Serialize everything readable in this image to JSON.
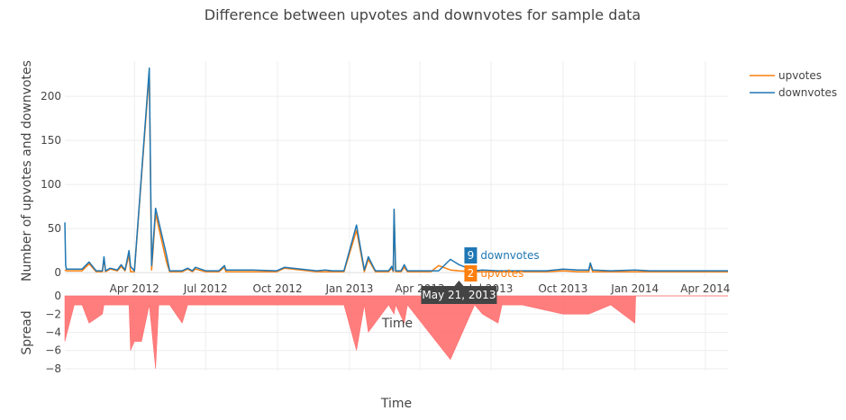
{
  "chart_data": [
    {
      "type": "line",
      "title": "Difference between upvotes and downvotes for sample data",
      "xlabel": "Time",
      "ylabel": "Number of upvotes and downvotes",
      "ylim": [
        -5,
        240
      ],
      "y_ticks": [
        0,
        50,
        100,
        150,
        200
      ],
      "x_ticks": [
        {
          "date": "2012-04-01",
          "label": "Apr 2012"
        },
        {
          "date": "2012-07-01",
          "label": "Jul 2012"
        },
        {
          "date": "2012-10-01",
          "label": "Oct 2012"
        },
        {
          "date": "2013-01-01",
          "label": "Jan 2013"
        },
        {
          "date": "2013-04-01",
          "label": "Apr 2013"
        },
        {
          "date": "2013-07-01",
          "label": "Jul 2013"
        },
        {
          "date": "2013-10-01",
          "label": "Oct 2013"
        },
        {
          "date": "2014-01-01",
          "label": "Jan 2014"
        },
        {
          "date": "2014-04-01",
          "label": "Apr 2014"
        }
      ],
      "xlim": [
        "2012-01-03",
        "2014-04-30"
      ],
      "grid": true,
      "legend": "top-right",
      "series": [
        {
          "name": "upvotes",
          "color": "#ff7f0e",
          "points": [
            [
              "2012-01-03",
              3
            ],
            [
              "2012-01-05",
              2
            ],
            [
              "2012-01-15",
              2
            ],
            [
              "2012-01-25",
              2
            ],
            [
              "2012-02-03",
              10
            ],
            [
              "2012-02-12",
              1
            ],
            [
              "2012-02-20",
              1
            ],
            [
              "2012-02-22",
              16
            ],
            [
              "2012-02-24",
              1
            ],
            [
              "2012-03-01",
              4
            ],
            [
              "2012-03-10",
              2
            ],
            [
              "2012-03-15",
              7
            ],
            [
              "2012-03-20",
              2
            ],
            [
              "2012-03-25",
              20
            ],
            [
              "2012-03-27",
              1
            ],
            [
              "2012-04-01",
              1
            ],
            [
              "2012-04-20",
              227
            ],
            [
              "2012-04-23",
              3
            ],
            [
              "2012-04-28",
              67
            ],
            [
              "2012-05-12",
              12
            ],
            [
              "2012-05-16",
              1
            ],
            [
              "2012-06-01",
              1
            ],
            [
              "2012-06-08",
              4
            ],
            [
              "2012-06-14",
              1
            ],
            [
              "2012-06-18",
              4
            ],
            [
              "2012-07-01",
              1
            ],
            [
              "2012-07-18",
              1
            ],
            [
              "2012-07-25",
              6
            ],
            [
              "2012-07-27",
              1
            ],
            [
              "2012-08-30",
              1
            ],
            [
              "2012-09-30",
              1
            ],
            [
              "2012-10-10",
              5
            ],
            [
              "2012-11-20",
              1
            ],
            [
              "2012-12-01",
              1
            ],
            [
              "2012-12-10",
              1
            ],
            [
              "2012-12-25",
              1
            ],
            [
              "2013-01-10",
              48
            ],
            [
              "2013-01-20",
              1
            ],
            [
              "2013-01-25",
              15
            ],
            [
              "2013-02-03",
              1
            ],
            [
              "2013-02-20",
              1
            ],
            [
              "2013-02-24",
              5
            ],
            [
              "2013-02-26",
              1
            ],
            [
              "2013-02-27",
              70
            ],
            [
              "2013-03-01",
              1
            ],
            [
              "2013-03-08",
              1
            ],
            [
              "2013-03-12",
              6
            ],
            [
              "2013-03-16",
              1
            ],
            [
              "2013-04-01",
              1
            ],
            [
              "2013-04-15",
              1
            ],
            [
              "2013-04-25",
              8
            ],
            [
              "2013-05-10",
              3
            ],
            [
              "2013-05-21",
              2
            ],
            [
              "2013-06-10",
              1
            ],
            [
              "2013-06-20",
              1
            ],
            [
              "2013-07-10",
              1
            ],
            [
              "2013-08-10",
              1
            ],
            [
              "2013-09-10",
              1
            ],
            [
              "2013-10-01",
              2
            ],
            [
              "2013-10-20",
              1
            ],
            [
              "2013-11-03",
              1
            ],
            [
              "2013-11-05",
              9
            ],
            [
              "2013-11-08",
              1
            ],
            [
              "2013-12-01",
              1
            ],
            [
              "2014-01-01",
              1
            ],
            [
              "2014-01-20",
              1
            ],
            [
              "2014-02-15",
              1
            ],
            [
              "2014-03-10",
              1
            ],
            [
              "2014-03-30",
              1
            ],
            [
              "2014-04-30",
              1
            ]
          ]
        },
        {
          "name": "downvotes",
          "color": "#1f77b4",
          "points": [
            [
              "2012-01-03",
              57
            ],
            [
              "2012-01-04",
              8
            ],
            [
              "2012-01-05",
              4
            ],
            [
              "2012-01-15",
              4
            ],
            [
              "2012-01-25",
              4
            ],
            [
              "2012-02-03",
              12
            ],
            [
              "2012-02-12",
              2
            ],
            [
              "2012-02-20",
              2
            ],
            [
              "2012-02-22",
              18
            ],
            [
              "2012-02-24",
              2
            ],
            [
              "2012-03-01",
              5
            ],
            [
              "2012-03-10",
              3
            ],
            [
              "2012-03-15",
              9
            ],
            [
              "2012-03-20",
              3
            ],
            [
              "2012-03-25",
              25
            ],
            [
              "2012-03-27",
              7
            ],
            [
              "2012-04-01",
              2
            ],
            [
              "2012-04-20",
              232
            ],
            [
              "2012-04-23",
              8
            ],
            [
              "2012-04-28",
              73
            ],
            [
              "2012-05-12",
              20
            ],
            [
              "2012-05-16",
              2
            ],
            [
              "2012-06-01",
              2
            ],
            [
              "2012-06-08",
              5
            ],
            [
              "2012-06-14",
              2
            ],
            [
              "2012-06-18",
              6
            ],
            [
              "2012-07-01",
              2
            ],
            [
              "2012-07-18",
              2
            ],
            [
              "2012-07-25",
              8
            ],
            [
              "2012-07-27",
              3
            ],
            [
              "2012-08-30",
              3
            ],
            [
              "2012-09-30",
              2
            ],
            [
              "2012-10-10",
              6
            ],
            [
              "2012-11-20",
              2
            ],
            [
              "2012-12-01",
              3
            ],
            [
              "2012-12-10",
              2
            ],
            [
              "2012-12-25",
              2
            ],
            [
              "2013-01-10",
              54
            ],
            [
              "2013-01-20",
              3
            ],
            [
              "2013-01-25",
              18
            ],
            [
              "2013-02-03",
              2
            ],
            [
              "2013-02-20",
              2
            ],
            [
              "2013-02-24",
              7
            ],
            [
              "2013-02-26",
              2
            ],
            [
              "2013-02-27",
              72
            ],
            [
              "2013-03-01",
              2
            ],
            [
              "2013-03-08",
              2
            ],
            [
              "2013-03-12",
              9
            ],
            [
              "2013-03-16",
              2
            ],
            [
              "2013-04-01",
              2
            ],
            [
              "2013-04-15",
              2
            ],
            [
              "2013-04-25",
              2
            ],
            [
              "2013-05-10",
              15
            ],
            [
              "2013-05-21",
              9
            ],
            [
              "2013-06-10",
              2
            ],
            [
              "2013-06-20",
              3
            ],
            [
              "2013-07-10",
              2
            ],
            [
              "2013-08-10",
              2
            ],
            [
              "2013-09-10",
              2
            ],
            [
              "2013-10-01",
              4
            ],
            [
              "2013-10-20",
              3
            ],
            [
              "2013-11-03",
              3
            ],
            [
              "2013-11-05",
              11
            ],
            [
              "2013-11-08",
              3
            ],
            [
              "2013-12-01",
              2
            ],
            [
              "2014-01-01",
              3
            ],
            [
              "2014-01-20",
              2
            ],
            [
              "2014-02-15",
              2
            ],
            [
              "2014-03-10",
              2
            ],
            [
              "2014-03-30",
              2
            ],
            [
              "2014-04-30",
              2
            ]
          ]
        }
      ],
      "hover": {
        "date_label": "May 21, 2013",
        "date": "2013-05-21",
        "items": [
          {
            "series": "downvotes",
            "value": "9",
            "color": "#1f77b4"
          },
          {
            "series": "upvotes",
            "value": "2",
            "color": "#ff7f0e"
          }
        ]
      }
    },
    {
      "type": "area",
      "ylabel": "Spread",
      "xlabel": "Time",
      "ylim": [
        -8.2,
        0.2
      ],
      "y_ticks": [
        0,
        -2,
        -4,
        -6,
        -8
      ],
      "fill_color": "#ff6666",
      "points": [
        [
          "2012-01-03",
          -5
        ],
        [
          "2012-01-15",
          -1
        ],
        [
          "2012-01-25",
          -1
        ],
        [
          "2012-02-03",
          -3
        ],
        [
          "2012-02-20",
          -2
        ],
        [
          "2012-02-22",
          -1
        ],
        [
          "2012-03-25",
          -1
        ],
        [
          "2012-03-27",
          -6
        ],
        [
          "2012-04-01",
          -5
        ],
        [
          "2012-04-10",
          -5
        ],
        [
          "2012-04-20",
          -1
        ],
        [
          "2012-04-28",
          -8
        ],
        [
          "2012-05-02",
          -1
        ],
        [
          "2012-05-12",
          -1
        ],
        [
          "2012-05-16",
          -1
        ],
        [
          "2012-06-01",
          -3
        ],
        [
          "2012-06-08",
          -1
        ],
        [
          "2012-07-25",
          -1
        ],
        [
          "2012-08-01",
          -1
        ],
        [
          "2012-09-01",
          -1
        ],
        [
          "2012-10-10",
          -1
        ],
        [
          "2012-11-20",
          -1
        ],
        [
          "2012-12-25",
          -1
        ],
        [
          "2013-01-10",
          -6
        ],
        [
          "2013-01-20",
          -1
        ],
        [
          "2013-01-25",
          -4
        ],
        [
          "2013-02-20",
          -1
        ],
        [
          "2013-02-27",
          -2
        ],
        [
          "2013-03-01",
          -1
        ],
        [
          "2013-03-12",
          -3
        ],
        [
          "2013-03-16",
          -1
        ],
        [
          "2013-05-10",
          -7
        ],
        [
          "2013-06-10",
          -1
        ],
        [
          "2013-06-20",
          -2
        ],
        [
          "2013-07-10",
          -3
        ],
        [
          "2013-07-15",
          -1
        ],
        [
          "2013-08-10",
          -1
        ],
        [
          "2013-10-01",
          -2
        ],
        [
          "2013-11-03",
          -2
        ],
        [
          "2013-12-01",
          -1
        ],
        [
          "2014-01-01",
          -3
        ],
        [
          "2014-01-02",
          0
        ],
        [
          "2014-04-30",
          0
        ]
      ]
    }
  ]
}
